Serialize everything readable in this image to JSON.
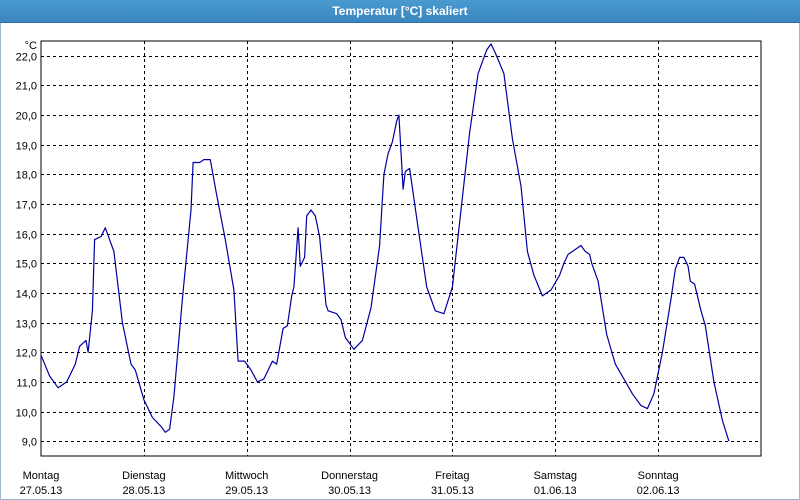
{
  "window": {
    "title": "Temperatur [°C] skaliert"
  },
  "colors": {
    "title_bar": "#3a86c0",
    "series": "#0000a0",
    "grid": "#000000"
  },
  "chart_data": {
    "type": "line",
    "title": "Temperatur [°C] skaliert",
    "ylabel": "°C",
    "xlabel": "",
    "ylim": [
      8.5,
      22.5
    ],
    "yticks": [
      9.0,
      10.0,
      11.0,
      12.0,
      13.0,
      14.0,
      15.0,
      16.0,
      17.0,
      18.0,
      19.0,
      20.0,
      21.0,
      22.0
    ],
    "ytick_labels": [
      "9,0",
      "10,0",
      "11,0",
      "12,0",
      "13,0",
      "14,0",
      "15,0",
      "16,0",
      "17,0",
      "18,0",
      "19,0",
      "20,0",
      "21,0",
      "22,0"
    ],
    "xlim": [
      "2013-05-27 00:00",
      "2013-06-03 00:00"
    ],
    "grid": true,
    "x_ticks": [
      {
        "day": "Montag",
        "date": "27.05.13"
      },
      {
        "day": "Dienstag",
        "date": "28.05.13"
      },
      {
        "day": "Mittwoch",
        "date": "29.05.13"
      },
      {
        "day": "Donnerstag",
        "date": "30.05.13"
      },
      {
        "day": "Freitag",
        "date": "31.05.13"
      },
      {
        "day": "Samstag",
        "date": "01.06.13"
      },
      {
        "day": "Sonntag",
        "date": "02.06.13"
      }
    ],
    "series": [
      {
        "points": [
          [
            "2013-05-27 00:00",
            11.9
          ],
          [
            "2013-05-27 02:00",
            11.2
          ],
          [
            "2013-05-27 04:00",
            10.8
          ],
          [
            "2013-05-27 06:00",
            11.0
          ],
          [
            "2013-05-27 08:00",
            11.6
          ],
          [
            "2013-05-27 09:00",
            12.2
          ],
          [
            "2013-05-27 10:30",
            12.4
          ],
          [
            "2013-05-27 11:00",
            12.0
          ],
          [
            "2013-05-27 12:00",
            13.4
          ],
          [
            "2013-05-27 12:30",
            15.8
          ],
          [
            "2013-05-27 14:00",
            15.9
          ],
          [
            "2013-05-27 15:00",
            16.2
          ],
          [
            "2013-05-27 17:00",
            15.4
          ],
          [
            "2013-05-27 19:00",
            13.0
          ],
          [
            "2013-05-27 21:00",
            11.6
          ],
          [
            "2013-05-27 22:00",
            11.4
          ],
          [
            "2013-05-28 00:00",
            10.4
          ],
          [
            "2013-05-28 02:00",
            9.8
          ],
          [
            "2013-05-28 04:00",
            9.5
          ],
          [
            "2013-05-28 05:00",
            9.3
          ],
          [
            "2013-05-28 06:00",
            9.4
          ],
          [
            "2013-05-28 07:00",
            10.5
          ],
          [
            "2013-05-28 09:00",
            13.8
          ],
          [
            "2013-05-28 11:00",
            16.8
          ],
          [
            "2013-05-28 11:30",
            18.4
          ],
          [
            "2013-05-28 13:00",
            18.4
          ],
          [
            "2013-05-28 14:00",
            18.5
          ],
          [
            "2013-05-28 15:30",
            18.5
          ],
          [
            "2013-05-28 17:00",
            17.3
          ],
          [
            "2013-05-28 19:00",
            15.8
          ],
          [
            "2013-05-28 21:00",
            14.1
          ],
          [
            "2013-05-28 22:00",
            11.7
          ],
          [
            "2013-05-28 23:30",
            11.7
          ],
          [
            "2013-05-29 01:00",
            11.4
          ],
          [
            "2013-05-29 02:30",
            11.0
          ],
          [
            "2013-05-29 04:00",
            11.1
          ],
          [
            "2013-05-29 06:00",
            11.7
          ],
          [
            "2013-05-29 07:00",
            11.6
          ],
          [
            "2013-05-29 08:30",
            12.8
          ],
          [
            "2013-05-29 09:30",
            12.9
          ],
          [
            "2013-05-29 10:30",
            13.9
          ],
          [
            "2013-05-29 11:00",
            14.2
          ],
          [
            "2013-05-29 12:00",
            16.2
          ],
          [
            "2013-05-29 12:30",
            14.9
          ],
          [
            "2013-05-29 13:30",
            15.2
          ],
          [
            "2013-05-29 14:00",
            16.6
          ],
          [
            "2013-05-29 15:00",
            16.8
          ],
          [
            "2013-05-29 16:00",
            16.6
          ],
          [
            "2013-05-29 17:00",
            15.9
          ],
          [
            "2013-05-29 18:30",
            13.6
          ],
          [
            "2013-05-29 19:00",
            13.4
          ],
          [
            "2013-05-29 21:00",
            13.3
          ],
          [
            "2013-05-29 22:00",
            13.1
          ],
          [
            "2013-05-29 23:00",
            12.5
          ],
          [
            "2013-05-30 01:00",
            12.1
          ],
          [
            "2013-05-30 03:00",
            12.4
          ],
          [
            "2013-05-30 05:00",
            13.5
          ],
          [
            "2013-05-30 07:00",
            15.6
          ],
          [
            "2013-05-30 08:00",
            18.0
          ],
          [
            "2013-05-30 09:00",
            18.7
          ],
          [
            "2013-05-30 10:00",
            19.1
          ],
          [
            "2013-05-30 11:00",
            19.8
          ],
          [
            "2013-05-30 11:30",
            20.0
          ],
          [
            "2013-05-30 12:30",
            17.5
          ],
          [
            "2013-05-30 13:00",
            18.1
          ],
          [
            "2013-05-30 14:00",
            18.2
          ],
          [
            "2013-05-30 16:00",
            16.2
          ],
          [
            "2013-05-30 18:00",
            14.2
          ],
          [
            "2013-05-30 20:00",
            13.4
          ],
          [
            "2013-05-30 22:00",
            13.3
          ],
          [
            "2013-05-31 00:00",
            14.2
          ],
          [
            "2013-05-31 02:00",
            16.8
          ],
          [
            "2013-05-31 04:00",
            19.4
          ],
          [
            "2013-05-31 06:00",
            21.4
          ],
          [
            "2013-05-31 08:00",
            22.2
          ],
          [
            "2013-05-31 09:00",
            22.4
          ],
          [
            "2013-05-31 10:00",
            22.1
          ],
          [
            "2013-05-31 12:00",
            21.4
          ],
          [
            "2013-05-31 14:00",
            19.2
          ],
          [
            "2013-05-31 16:00",
            17.6
          ],
          [
            "2013-05-31 17:30",
            15.4
          ],
          [
            "2013-05-31 19:00",
            14.6
          ],
          [
            "2013-05-31 21:00",
            13.9
          ],
          [
            "2013-05-31 23:00",
            14.1
          ],
          [
            "2013-06-01 01:00",
            14.6
          ],
          [
            "2013-06-01 02:00",
            15.0
          ],
          [
            "2013-06-01 03:00",
            15.3
          ],
          [
            "2013-06-01 05:00",
            15.5
          ],
          [
            "2013-06-01 06:00",
            15.6
          ],
          [
            "2013-06-01 07:00",
            15.4
          ],
          [
            "2013-06-01 08:00",
            15.3
          ],
          [
            "2013-06-01 08:30",
            15.0
          ],
          [
            "2013-06-01 10:00",
            14.4
          ],
          [
            "2013-06-01 12:00",
            12.6
          ],
          [
            "2013-06-01 14:00",
            11.6
          ],
          [
            "2013-06-01 16:00",
            11.1
          ],
          [
            "2013-06-01 18:00",
            10.6
          ],
          [
            "2013-06-01 20:00",
            10.2
          ],
          [
            "2013-06-01 21:30",
            10.1
          ],
          [
            "2013-06-01 23:00",
            10.6
          ],
          [
            "2013-06-02 01:00",
            12.0
          ],
          [
            "2013-06-02 03:00",
            13.8
          ],
          [
            "2013-06-02 04:00",
            14.8
          ],
          [
            "2013-06-02 05:00",
            15.2
          ],
          [
            "2013-06-02 06:00",
            15.2
          ],
          [
            "2013-06-02 07:00",
            14.9
          ],
          [
            "2013-06-02 07:30",
            14.4
          ],
          [
            "2013-06-02 08:30",
            14.3
          ],
          [
            "2013-06-02 10:00",
            13.4
          ],
          [
            "2013-06-02 11:00",
            12.9
          ],
          [
            "2013-06-02 13:00",
            11.0
          ],
          [
            "2013-06-02 15:00",
            9.7
          ],
          [
            "2013-06-02 16:30",
            9.0
          ]
        ]
      }
    ]
  }
}
